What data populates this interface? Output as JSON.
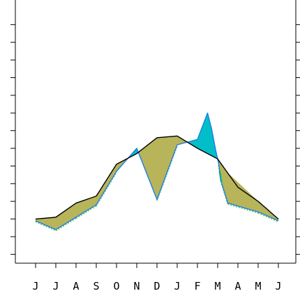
{
  "chart_data": {
    "type": "line",
    "categories": [
      "J",
      "J",
      "A",
      "S",
      "O",
      "N",
      "D",
      "J",
      "F",
      "M",
      "A",
      "M",
      "J"
    ],
    "ylim": [
      0,
      14.5
    ],
    "y_ticks": [
      0.5,
      1.5,
      2.5,
      3.5,
      4.5,
      5.5,
      6.5,
      7.5,
      8.5,
      9.5,
      10.5,
      11.5,
      12.5,
      13.5
    ],
    "grid": false,
    "series": [
      {
        "role": "black",
        "color": "#000000",
        "values": [
          2.5,
          2.6,
          3.4,
          3.8,
          5.6,
          6.2,
          7.1,
          7.2,
          6.5,
          5.9,
          4.3,
          3.5,
          2.5
        ]
      },
      {
        "role": "blue",
        "color": "#1a7fe6",
        "values": [
          2.4,
          1.9,
          2.6,
          3.3,
          5.2,
          6.5,
          3.6,
          6.7,
          7.0,
          8.5,
          3.4,
          2.9,
          2.4
        ],
        "march_detail": [
          [
            8.5,
            8.5
          ],
          [
            8.7,
            7.6
          ],
          [
            8.8,
            7.0
          ],
          [
            8.9,
            6.4
          ],
          [
            9.0,
            5.9
          ],
          [
            9.05,
            5.6
          ],
          [
            9.15,
            4.7
          ],
          [
            9.5,
            3.4
          ]
        ]
      }
    ],
    "fills": {
      "black_above_color": "#b8b45a",
      "blue_above_color": "#00bfc8",
      "blue_above_edge_color": "#39d24a",
      "below_edge_color": "#7ec86a"
    }
  }
}
